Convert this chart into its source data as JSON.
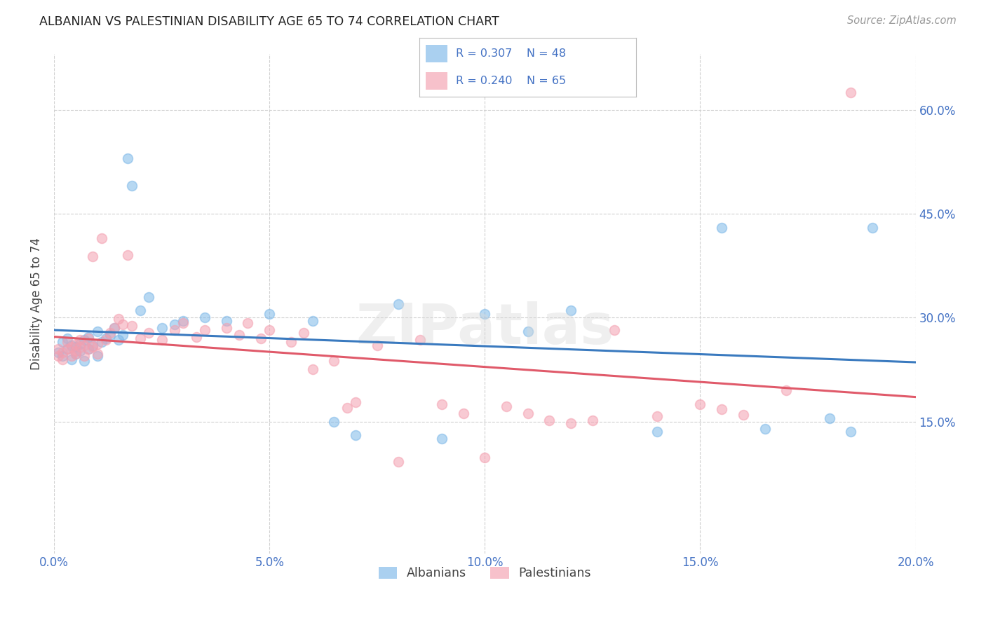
{
  "title": "ALBANIAN VS PALESTINIAN DISABILITY AGE 65 TO 74 CORRELATION CHART",
  "source": "Source: ZipAtlas.com",
  "ylabel": "Disability Age 65 to 74",
  "xlim": [
    0.0,
    0.2
  ],
  "ylim": [
    -0.04,
    0.68
  ],
  "xticks": [
    0.0,
    0.05,
    0.1,
    0.15,
    0.2
  ],
  "xtick_labels": [
    "0.0%",
    "5.0%",
    "10.0%",
    "15.0%",
    "20.0%"
  ],
  "yticks": [
    0.15,
    0.3,
    0.45,
    0.6
  ],
  "ytick_labels": [
    "15.0%",
    "30.0%",
    "45.0%",
    "60.0%"
  ],
  "albanian_color": "#7db8e8",
  "palestinian_color": "#f4a0b0",
  "albanian_line_color": "#3a7abf",
  "palestinian_line_color": "#e05a6a",
  "marker_size": 100,
  "marker_alpha": 0.55,
  "grid_color": "#d0d0d0",
  "bg_color": "#ffffff",
  "title_color": "#222222",
  "axis_label_color": "#444444",
  "tick_label_color": "#4472c4",
  "watermark": "ZIPatlas",
  "albanian_x": [
    0.001,
    0.002,
    0.002,
    0.003,
    0.003,
    0.004,
    0.004,
    0.005,
    0.005,
    0.006,
    0.006,
    0.007,
    0.007,
    0.008,
    0.008,
    0.009,
    0.01,
    0.01,
    0.011,
    0.012,
    0.013,
    0.014,
    0.015,
    0.016,
    0.017,
    0.018,
    0.02,
    0.022,
    0.025,
    0.028,
    0.03,
    0.035,
    0.04,
    0.05,
    0.06,
    0.065,
    0.07,
    0.08,
    0.09,
    0.1,
    0.11,
    0.12,
    0.14,
    0.155,
    0.165,
    0.18,
    0.185,
    0.19
  ],
  "albanian_y": [
    0.25,
    0.245,
    0.265,
    0.255,
    0.27,
    0.26,
    0.24,
    0.258,
    0.248,
    0.262,
    0.252,
    0.268,
    0.238,
    0.255,
    0.272,
    0.26,
    0.245,
    0.28,
    0.265,
    0.27,
    0.275,
    0.285,
    0.268,
    0.275,
    0.53,
    0.49,
    0.31,
    0.33,
    0.285,
    0.29,
    0.295,
    0.3,
    0.295,
    0.305,
    0.295,
    0.15,
    0.13,
    0.32,
    0.125,
    0.305,
    0.28,
    0.31,
    0.135,
    0.43,
    0.14,
    0.155,
    0.135,
    0.43
  ],
  "palestinian_x": [
    0.001,
    0.001,
    0.002,
    0.002,
    0.003,
    0.003,
    0.004,
    0.004,
    0.005,
    0.005,
    0.005,
    0.006,
    0.006,
    0.007,
    0.007,
    0.008,
    0.008,
    0.009,
    0.009,
    0.01,
    0.01,
    0.011,
    0.012,
    0.013,
    0.014,
    0.015,
    0.016,
    0.017,
    0.018,
    0.02,
    0.022,
    0.025,
    0.028,
    0.03,
    0.033,
    0.035,
    0.04,
    0.043,
    0.045,
    0.048,
    0.05,
    0.055,
    0.058,
    0.06,
    0.065,
    0.068,
    0.07,
    0.075,
    0.08,
    0.085,
    0.09,
    0.095,
    0.1,
    0.105,
    0.11,
    0.115,
    0.12,
    0.125,
    0.13,
    0.14,
    0.15,
    0.155,
    0.16,
    0.17,
    0.185
  ],
  "palestinian_y": [
    0.255,
    0.245,
    0.25,
    0.24,
    0.255,
    0.265,
    0.245,
    0.258,
    0.248,
    0.262,
    0.252,
    0.268,
    0.258,
    0.26,
    0.245,
    0.27,
    0.255,
    0.388,
    0.258,
    0.262,
    0.248,
    0.415,
    0.268,
    0.278,
    0.285,
    0.298,
    0.29,
    0.39,
    0.288,
    0.27,
    0.278,
    0.268,
    0.282,
    0.292,
    0.272,
    0.282,
    0.285,
    0.275,
    0.292,
    0.27,
    0.282,
    0.265,
    0.278,
    0.225,
    0.238,
    0.17,
    0.178,
    0.26,
    0.092,
    0.268,
    0.175,
    0.162,
    0.098,
    0.172,
    0.162,
    0.152,
    0.148,
    0.152,
    0.282,
    0.158,
    0.175,
    0.168,
    0.16,
    0.195,
    0.625
  ]
}
